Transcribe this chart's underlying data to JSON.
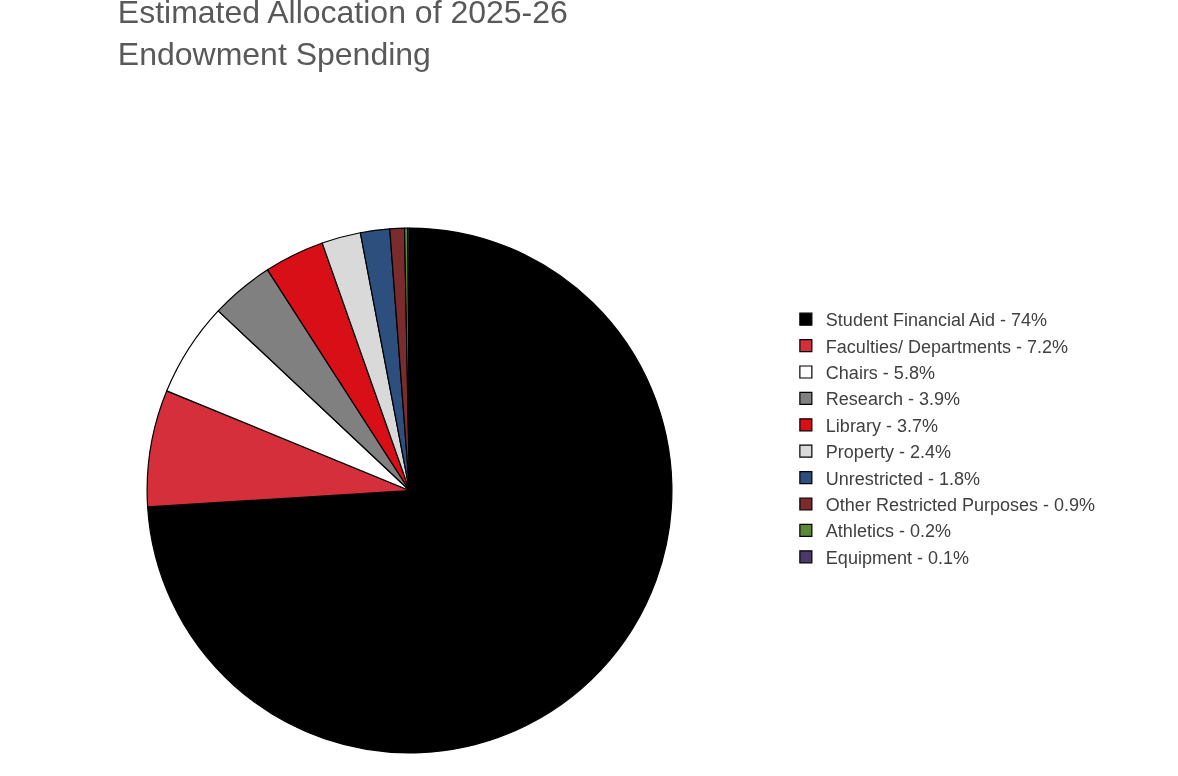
{
  "chart_data": {
    "type": "pie",
    "title": "Estimated Allocation of 2025-26 Endowment Spending",
    "categories": [
      "Student Financial Aid - 74%",
      "Faculties/ Departments - 7.2%",
      "Chairs - 5.8%",
      "Research - 3.9%",
      "Library - 3.7%",
      "Property - 2.4%",
      "Unrestricted - 1.8%",
      "Other Restricted Purposes - 0.9%",
      "Athletics - 0.2%",
      "Equipment - 0.1%"
    ],
    "values": [
      74,
      7.2,
      5.8,
      3.9,
      3.7,
      2.4,
      1.8,
      0.9,
      0.2,
      0.1
    ],
    "colors": [
      "#000000",
      "#d52f3b",
      "#ffffff",
      "#808080",
      "#d90f18",
      "#d9d9d9",
      "#2d4f7d",
      "#7a2b2b",
      "#5b8a36",
      "#4a3a6a"
    ],
    "legend": "right"
  }
}
